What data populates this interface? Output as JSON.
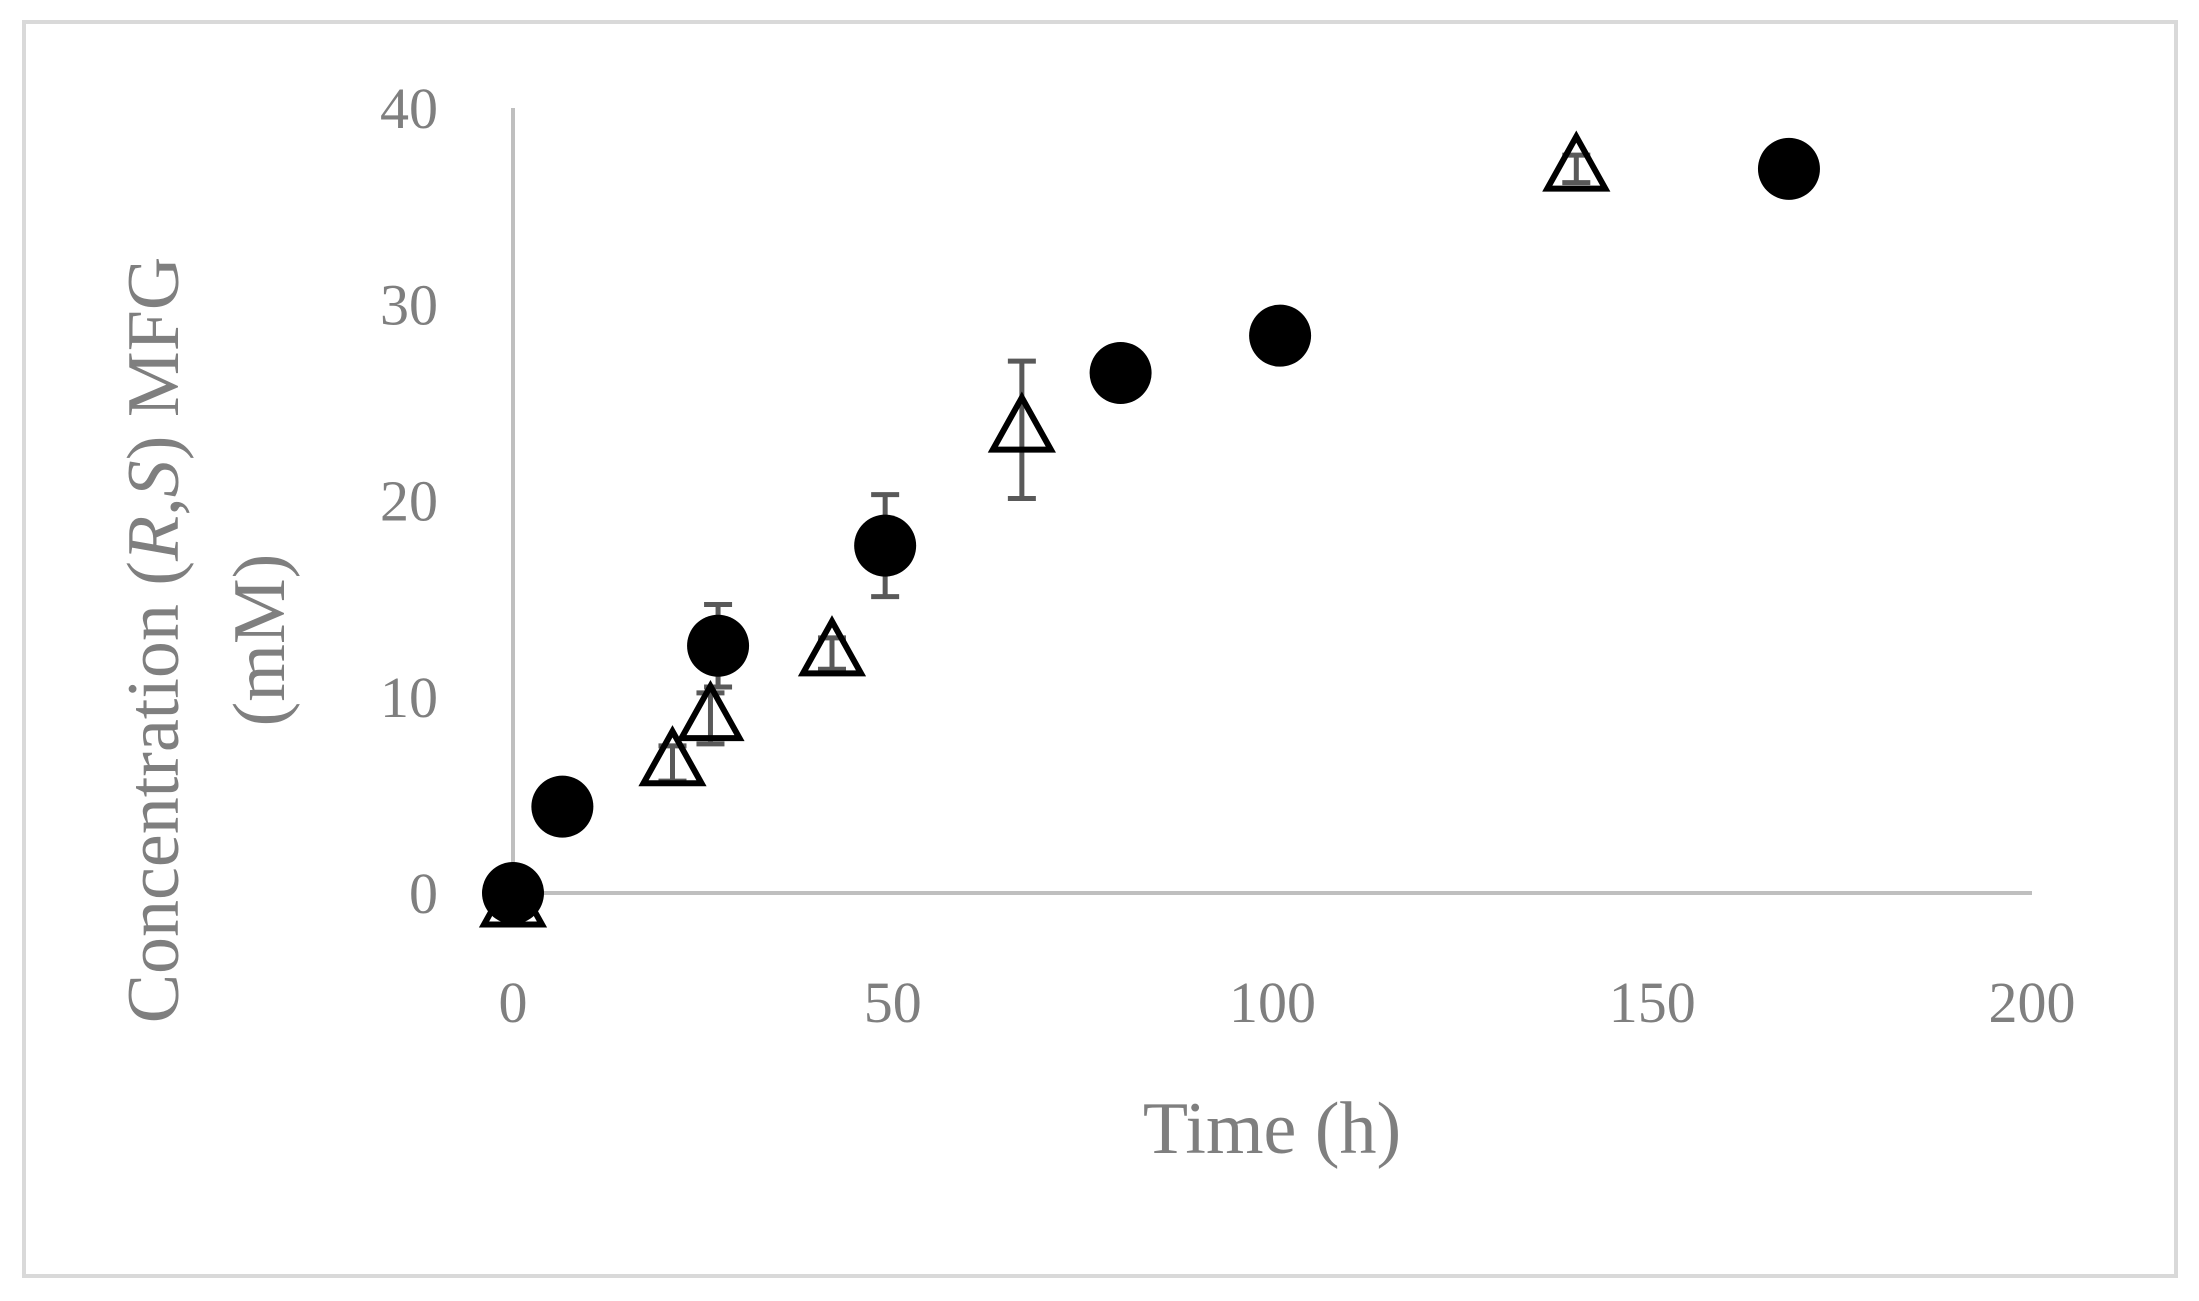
{
  "chart_data": {
    "type": "scatter",
    "title": "",
    "xlabel": "Time (h)",
    "ylabel_parts": {
      "prefix": "Concentration  (",
      "r": "R",
      "comma": ",",
      "s": "S",
      "suffix": ") MFG",
      "line2": "(mM)"
    },
    "xlim": [
      0,
      200
    ],
    "ylim": [
      0,
      40
    ],
    "xticks": [
      0,
      50,
      100,
      150,
      200
    ],
    "yticks": [
      0,
      10,
      20,
      30,
      40
    ],
    "xtick_labels": [
      "0",
      "50",
      "100",
      "150",
      "200"
    ],
    "ytick_labels": [
      "0",
      "10",
      "20",
      "30",
      "40"
    ],
    "grid": false,
    "legend": "none",
    "colors": {
      "axis": "#bfbfbf",
      "text": "#7f7f7f",
      "marker": "#000000",
      "errorbar": "#595959"
    },
    "series": [
      {
        "marker": "circle-filled",
        "points": [
          {
            "x": 0,
            "y": 0
          },
          {
            "x": 6.5,
            "y": 4.4
          },
          {
            "x": 27,
            "y": 12.6,
            "err": 2.1
          },
          {
            "x": 49,
            "y": 17.7,
            "err": 2.6
          },
          {
            "x": 80,
            "y": 26.5
          },
          {
            "x": 101,
            "y": 28.4
          },
          {
            "x": 168,
            "y": 36.9
          }
        ]
      },
      {
        "marker": "triangle-open",
        "points": [
          {
            "x": 0,
            "y": -0.6
          },
          {
            "x": 21,
            "y": 6.6,
            "err": 0.9
          },
          {
            "x": 26,
            "y": 8.9,
            "err": 1.3
          },
          {
            "x": 42,
            "y": 12.2,
            "err": 0.8
          },
          {
            "x": 67,
            "y": 23.6,
            "err": 3.5
          },
          {
            "x": 140,
            "y": 36.9,
            "err": 0.7
          }
        ]
      }
    ]
  }
}
